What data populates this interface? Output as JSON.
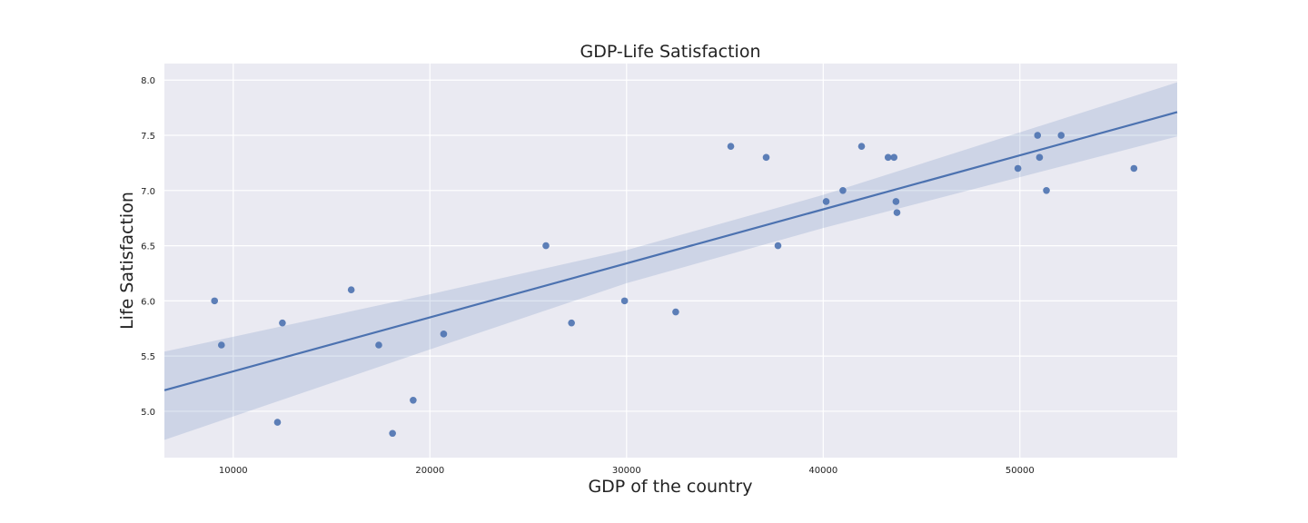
{
  "chart_data": {
    "type": "scatter",
    "title": "GDP-Life Satisfaction",
    "xlabel": "GDP of the country",
    "ylabel": "Life Satisfaction",
    "xlim": [
      6500,
      58000
    ],
    "ylim": [
      4.58,
      8.15
    ],
    "xticks": [
      10000,
      20000,
      30000,
      40000,
      50000
    ],
    "yticks": [
      5.0,
      5.5,
      6.0,
      6.5,
      7.0,
      7.5,
      8.0
    ],
    "xtick_labels": [
      "10000",
      "20000",
      "30000",
      "40000",
      "50000"
    ],
    "ytick_labels": [
      "5.0",
      "5.5",
      "6.0",
      "6.5",
      "7.0",
      "7.5",
      "8.0"
    ],
    "grid": true,
    "colors": {
      "background": "#eaeaf2",
      "grid": "#ffffff",
      "points": "#4c72b0",
      "line": "#4c72b0",
      "band": "#4c72b0"
    },
    "points": [
      {
        "x": 9050,
        "y": 6.0
      },
      {
        "x": 9400,
        "y": 5.6
      },
      {
        "x": 12250,
        "y": 4.9
      },
      {
        "x": 12500,
        "y": 5.8
      },
      {
        "x": 16000,
        "y": 6.1
      },
      {
        "x": 17400,
        "y": 5.6
      },
      {
        "x": 18100,
        "y": 4.8
      },
      {
        "x": 19150,
        "y": 5.1
      },
      {
        "x": 20700,
        "y": 5.7
      },
      {
        "x": 25900,
        "y": 6.5
      },
      {
        "x": 27200,
        "y": 5.8
      },
      {
        "x": 29900,
        "y": 6.0
      },
      {
        "x": 32500,
        "y": 5.9
      },
      {
        "x": 35300,
        "y": 7.4
      },
      {
        "x": 37100,
        "y": 7.3
      },
      {
        "x": 37700,
        "y": 6.5
      },
      {
        "x": 40150,
        "y": 6.9
      },
      {
        "x": 41000,
        "y": 7.0
      },
      {
        "x": 41950,
        "y": 7.4
      },
      {
        "x": 43300,
        "y": 7.3
      },
      {
        "x": 43600,
        "y": 7.3
      },
      {
        "x": 43700,
        "y": 6.9
      },
      {
        "x": 43750,
        "y": 6.8
      },
      {
        "x": 49900,
        "y": 7.2
      },
      {
        "x": 50900,
        "y": 7.5
      },
      {
        "x": 51000,
        "y": 7.3
      },
      {
        "x": 51350,
        "y": 7.0
      },
      {
        "x": 52100,
        "y": 7.5
      },
      {
        "x": 55800,
        "y": 7.2
      }
    ],
    "regression": {
      "x": [
        6500,
        58000
      ],
      "y": [
        5.19,
        7.71
      ]
    },
    "confidence_band": {
      "x": [
        6500,
        20000,
        30000,
        40000,
        58000
      ],
      "lower": [
        4.74,
        5.56,
        6.16,
        6.66,
        7.49
      ],
      "upper": [
        5.54,
        6.06,
        6.46,
        6.96,
        7.98
      ]
    }
  }
}
